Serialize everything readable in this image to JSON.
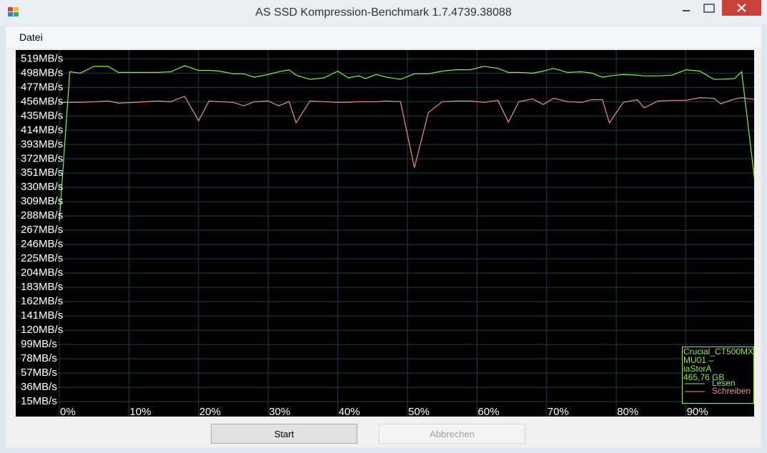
{
  "window": {
    "title": "AS SSD Kompression-Benchmark 1.7.4739.38088"
  },
  "menu": [
    "Datei"
  ],
  "chart_data": {
    "type": "line",
    "x": [
      0,
      1.5,
      3,
      5,
      7,
      8.5,
      11,
      14,
      16,
      18,
      20,
      21.5,
      23,
      25,
      26.5,
      28,
      30,
      31.5,
      33,
      34,
      36,
      38,
      40,
      41.5,
      43,
      44,
      45.5,
      47,
      49,
      51,
      53,
      55,
      57,
      59,
      61,
      63,
      64.5,
      66,
      68,
      69.5,
      71,
      73,
      75,
      76.5,
      78,
      79,
      81,
      83,
      84,
      86,
      88,
      90,
      92,
      94,
      95,
      97,
      98,
      100
    ],
    "series": [
      {
        "name": "Lesen",
        "color": "#8cf03c",
        "values": [
          280,
          500,
          498,
          508,
          508,
          499,
          499,
          499,
          500,
          509,
          502,
          502,
          501,
          497,
          497,
          492,
          496,
          500,
          503,
          495,
          489,
          491,
          501,
          491,
          494,
          490,
          496,
          492,
          489,
          497,
          497,
          501,
          503,
          503,
          508,
          505,
          499,
          499,
          498,
          501,
          505,
          499,
          500,
          498,
          492,
          494,
          496,
          495,
          494,
          494,
          495,
          503,
          501,
          489,
          489,
          490,
          500,
          330
        ]
      },
      {
        "name": "Schreiben",
        "color": "#f08c8c",
        "values": [
          455,
          455,
          455,
          456,
          457,
          454,
          455,
          457,
          456,
          464,
          428,
          457,
          456,
          455,
          450,
          456,
          457,
          450,
          456,
          425,
          457,
          456,
          455,
          455,
          456,
          456,
          456,
          457,
          456,
          359,
          440,
          456,
          457,
          457,
          455,
          458,
          426,
          456,
          460,
          452,
          461,
          456,
          455,
          459,
          459,
          425,
          455,
          459,
          447,
          457,
          458,
          458,
          462,
          461,
          453,
          460,
          462,
          459
        ]
      }
    ],
    "xlim": [
      0,
      100
    ],
    "xticks": [
      {
        "value": 0,
        "label": "0%"
      },
      {
        "value": 10,
        "label": "10%"
      },
      {
        "value": 20,
        "label": "20%"
      },
      {
        "value": 30,
        "label": "30%"
      },
      {
        "value": 40,
        "label": "40%"
      },
      {
        "value": 50,
        "label": "50%"
      },
      {
        "value": 60,
        "label": "60%"
      },
      {
        "value": 70,
        "label": "70%"
      },
      {
        "value": 80,
        "label": "80%"
      },
      {
        "value": 90,
        "label": "90%"
      },
      {
        "value": 100,
        "label": "100%"
      }
    ],
    "ylim": [
      -7,
      532
    ],
    "yticks": [
      {
        "value": 519,
        "label": "519MB/s"
      },
      {
        "value": 498,
        "label": "498MB/s"
      },
      {
        "value": 477,
        "label": "477MB/s"
      },
      {
        "value": 456,
        "label": "456MB/s"
      },
      {
        "value": 435,
        "label": "435MB/s"
      },
      {
        "value": 414,
        "label": "414MB/s"
      },
      {
        "value": 393,
        "label": "393MB/s"
      },
      {
        "value": 372,
        "label": "372MB/s"
      },
      {
        "value": 351,
        "label": "351MB/s"
      },
      {
        "value": 330,
        "label": "330MB/s"
      },
      {
        "value": 309,
        "label": "309MB/s"
      },
      {
        "value": 288,
        "label": "288MB/s"
      },
      {
        "value": 267,
        "label": "267MB/s"
      },
      {
        "value": 246,
        "label": "246MB/s"
      },
      {
        "value": 225,
        "label": "225MB/s"
      },
      {
        "value": 204,
        "label": "204MB/s"
      },
      {
        "value": 183,
        "label": "183MB/s"
      },
      {
        "value": 162,
        "label": "162MB/s"
      },
      {
        "value": 141,
        "label": "141MB/s"
      },
      {
        "value": 120,
        "label": "120MB/s"
      },
      {
        "value": 99,
        "label": "99MB/s"
      },
      {
        "value": 78,
        "label": "78MB/s"
      },
      {
        "value": 57,
        "label": "57MB/s"
      },
      {
        "value": 36,
        "label": "36MB/s"
      },
      {
        "value": 15,
        "label": "15MB/s"
      }
    ],
    "grid": true,
    "legend": "lower right",
    "info": [
      "Crucial_CT500MX",
      "MU01 –",
      "iaStorA",
      "465,76 GB"
    ]
  },
  "buttons": [
    "Start",
    "Abbrechen"
  ]
}
